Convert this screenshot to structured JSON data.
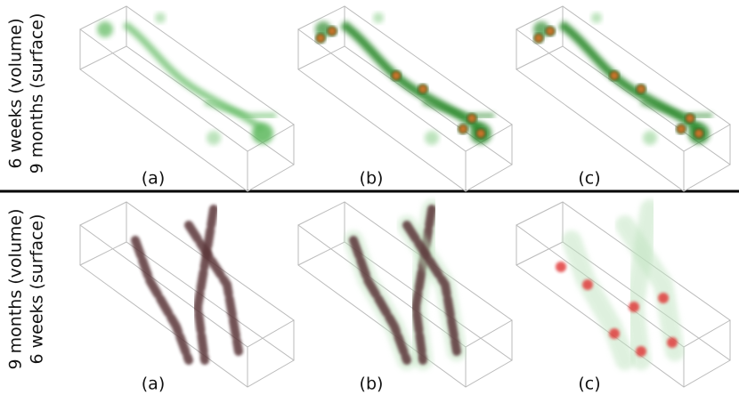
{
  "rows": [
    {
      "labels": [
        "6 weeks  (volume)",
        "9 months (surface)"
      ],
      "panels": [
        "(a)",
        "(b)",
        "(c)"
      ]
    },
    {
      "labels": [
        "9 months (volume)",
        "6 weeks (surface)"
      ],
      "panels": [
        "(a)",
        "(b)",
        "(c)"
      ]
    }
  ]
}
